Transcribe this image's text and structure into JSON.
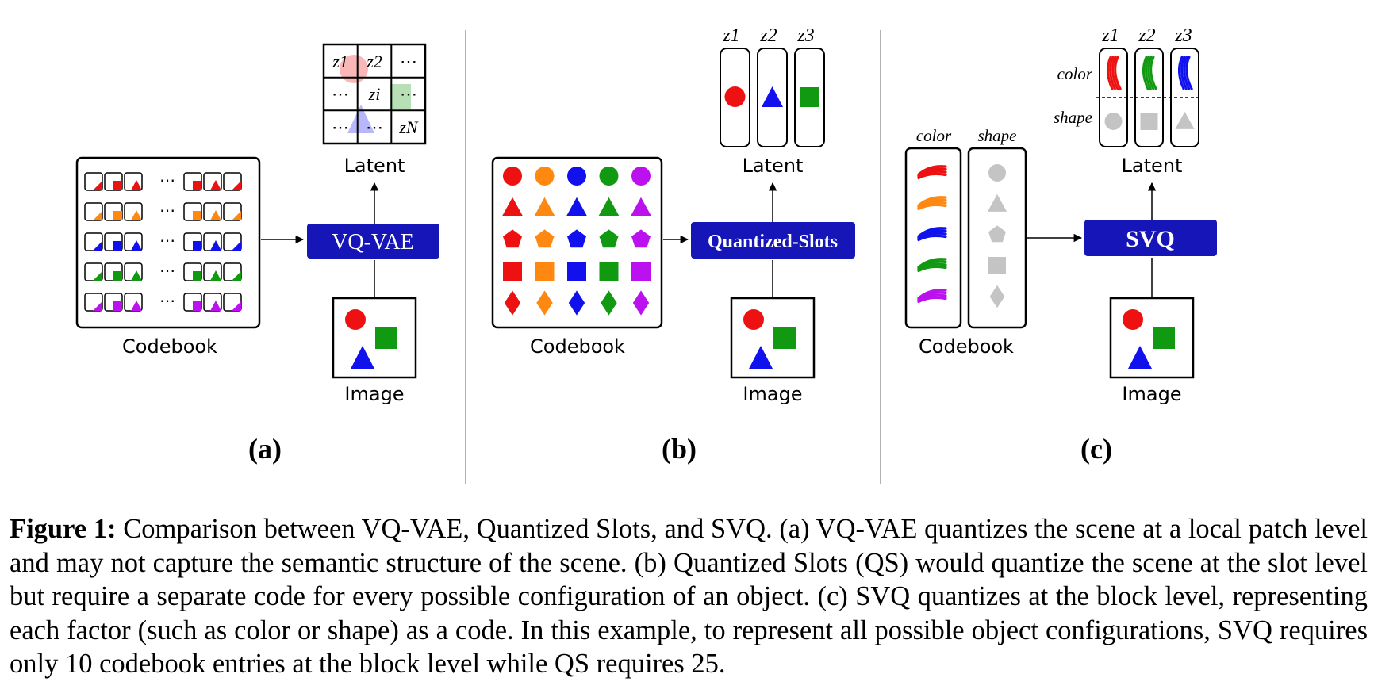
{
  "panels": [
    {
      "label": "(a)",
      "encoder": "VQ-VAE",
      "codebook_label": "Codebook",
      "latent_label": "Latent",
      "image_label": "Image",
      "latent_grid": [
        [
          "z1",
          "z2",
          "⋯"
        ],
        [
          "⋯",
          "zi",
          "⋯"
        ],
        [
          "⋯",
          "⋯",
          "zN"
        ]
      ],
      "codebook_colors": [
        "#ee1111",
        "#ff8811",
        "#1111ee",
        "#119911",
        "#bb11ee"
      ]
    },
    {
      "label": "(b)",
      "encoder": "Quantized-Slots",
      "codebook_label": "Codebook",
      "latent_label": "Latent",
      "image_label": "Image",
      "slots": [
        "z1",
        "z2",
        "z3"
      ],
      "codebook_colors": [
        "#ee1111",
        "#ff8811",
        "#1111ee",
        "#119911",
        "#bb11ee"
      ],
      "codebook_shapes": [
        "circle",
        "triangle",
        "pentagon",
        "square",
        "diamond"
      ]
    },
    {
      "label": "(c)",
      "encoder": "SVQ",
      "codebook_label": "Codebook",
      "latent_label": "Latent",
      "image_label": "Image",
      "slots": [
        "z1",
        "z2",
        "z3"
      ],
      "block_labels": [
        "color",
        "shape"
      ],
      "codebook_columns": [
        "color",
        "shape"
      ],
      "codebook_colors": [
        "#ee1111",
        "#ff8811",
        "#1111ee",
        "#119911",
        "#bb11ee"
      ],
      "codebook_shapes": [
        "circle",
        "triangle",
        "pentagon",
        "square",
        "diamond"
      ]
    }
  ],
  "caption": {
    "label": "Figure 1:",
    "text": "Comparison between VQ-VAE, Quantized Slots, and SVQ. (a) VQ-VAE quantizes the scene at a local patch level and may not capture the semantic structure of the scene. (b) Quantized Slots (QS) would quantize the scene at the slot level but require a separate code for every possible configuration of an object. (c) SVQ quantizes at the block level, representing each factor (such as color or shape) as a code. In this example, to represent all possible object configurations, SVQ requires only 10 codebook entries at the block level while QS requires 25."
  },
  "colors": {
    "encoder_fill": "#1515b8",
    "red": "#ee1111",
    "orange": "#ff8811",
    "blue": "#1111ee",
    "green": "#119911",
    "purple": "#bb11ee",
    "gray": "#c4c4c4"
  }
}
